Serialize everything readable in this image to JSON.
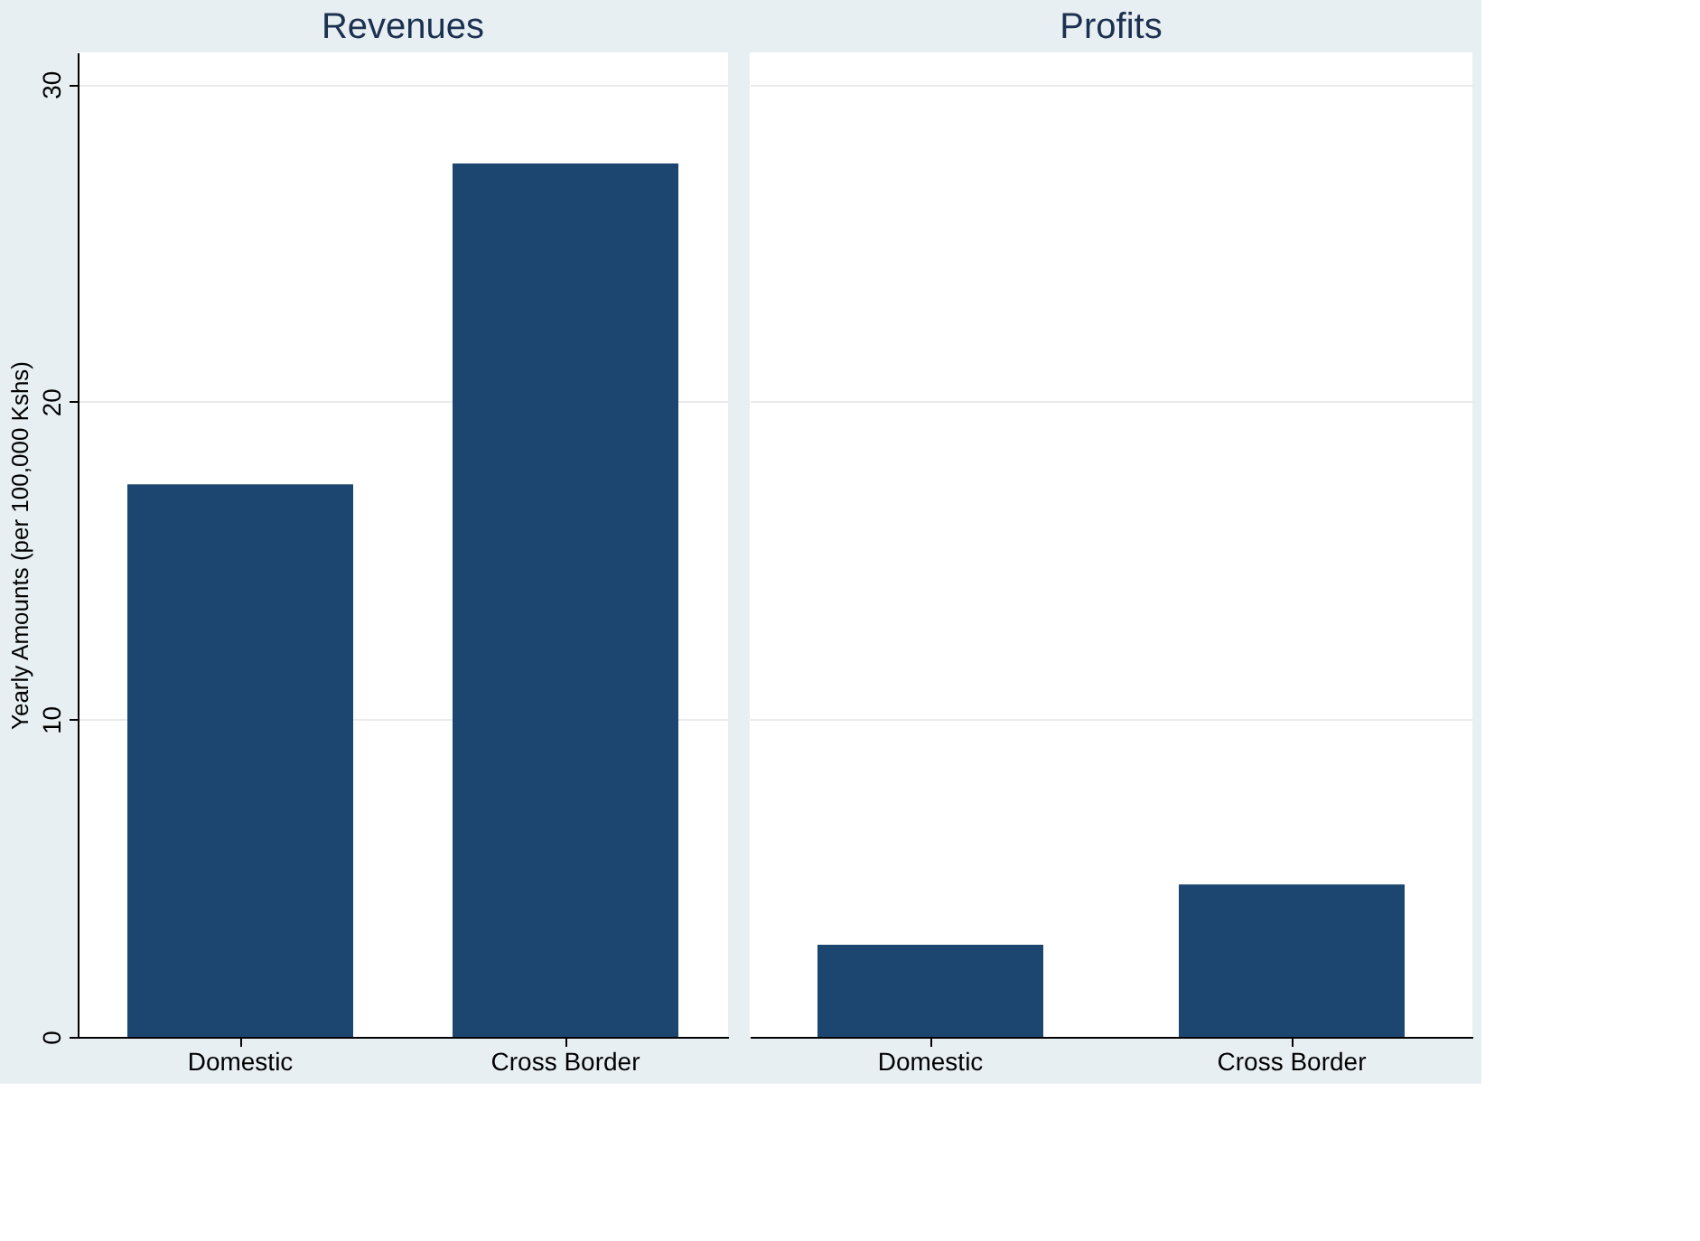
{
  "chart_data": [
    {
      "type": "bar",
      "title": "Revenues",
      "ylabel": "Yearly Amounts (per 100,000 Kshs)",
      "categories": [
        "Domestic",
        "Cross Border"
      ],
      "values": [
        17.4,
        27.5
      ],
      "color": "#1c4670",
      "ylim": [
        0,
        31
      ],
      "yticks": [
        0,
        10,
        20,
        30
      ],
      "grid": "y"
    },
    {
      "type": "bar",
      "title": "Profits",
      "categories": [
        "Domestic",
        "Cross Border"
      ],
      "values": [
        2.9,
        4.8
      ],
      "color": "#1c4670",
      "ylim": [
        0,
        31
      ],
      "yticks": [
        0,
        10,
        20,
        30
      ],
      "grid": "y",
      "tick_labels": "x"
    }
  ]
}
